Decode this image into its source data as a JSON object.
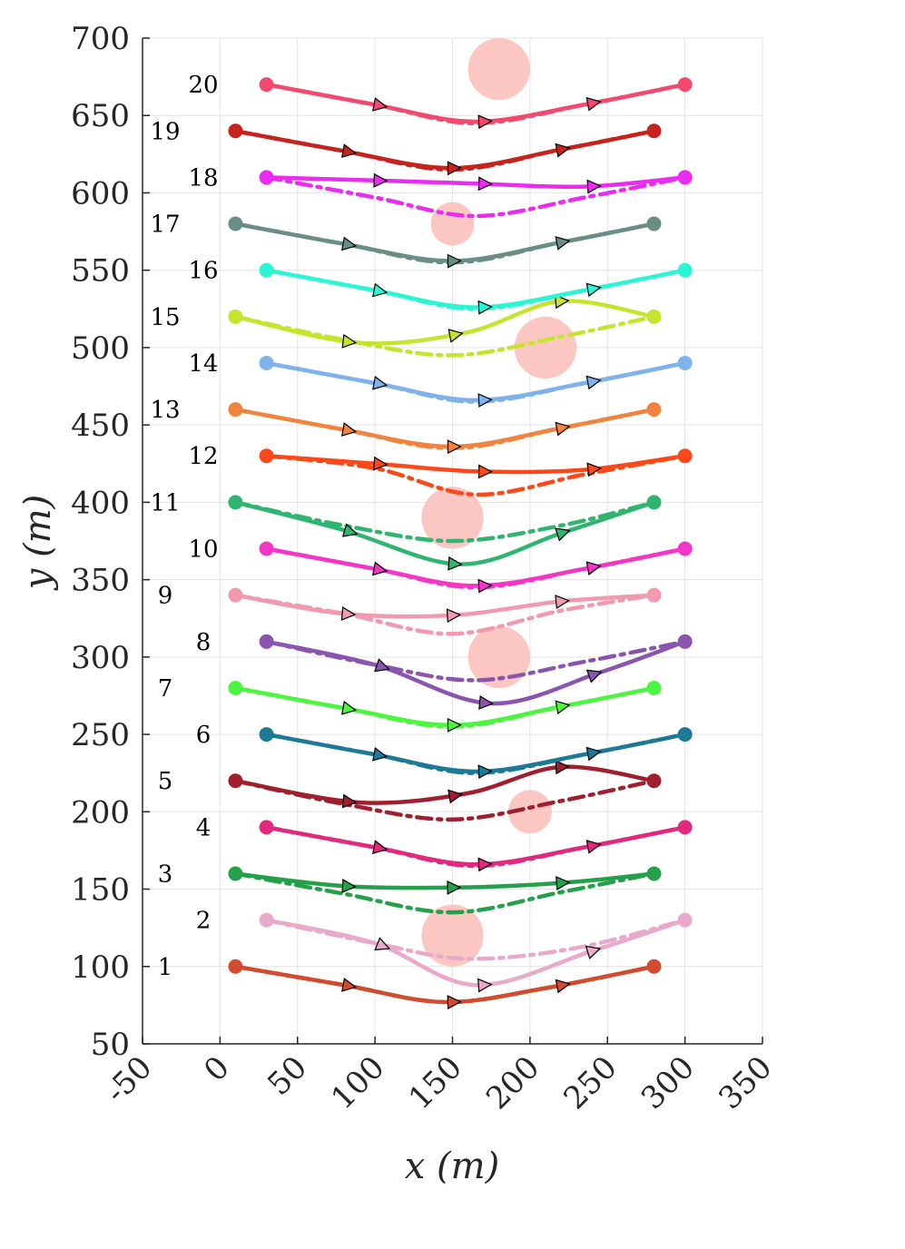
{
  "chart_data": {
    "type": "line",
    "title": "",
    "xlabel": "x (m)",
    "ylabel": "y (m)",
    "xlim": [
      -50,
      350
    ],
    "ylim": [
      50,
      700
    ],
    "xticks": [
      -50,
      0,
      50,
      100,
      150,
      200,
      250,
      300,
      350
    ],
    "yticks": [
      50,
      100,
      150,
      200,
      250,
      300,
      350,
      400,
      450,
      500,
      550,
      600,
      650,
      700
    ],
    "grid": true,
    "obstacles": [
      {
        "x": 180,
        "y": 680,
        "r": 20
      },
      {
        "x": 150,
        "y": 580,
        "r": 14
      },
      {
        "x": 210,
        "y": 500,
        "r": 20
      },
      {
        "x": 150,
        "y": 390,
        "r": 20
      },
      {
        "x": 180,
        "y": 300,
        "r": 20
      },
      {
        "x": 200,
        "y": 200,
        "r": 14
      },
      {
        "x": 150,
        "y": 120,
        "r": 20
      }
    ],
    "series": [
      {
        "name": "1",
        "label": "1",
        "color": "#d14b2e",
        "start": [
          10,
          100
        ],
        "end": [
          280,
          100
        ],
        "planned": [
          [
            10,
            100
          ],
          [
            80,
            88
          ],
          [
            145,
            77
          ],
          [
            210,
            86
          ],
          [
            280,
            100
          ]
        ],
        "actual": [
          [
            10,
            100
          ],
          [
            80,
            88
          ],
          [
            145,
            77
          ],
          [
            210,
            86
          ],
          [
            280,
            100
          ]
        ]
      },
      {
        "name": "2",
        "label": "2",
        "color": "#e8a9cb",
        "start": [
          30,
          130
        ],
        "end": [
          300,
          130
        ],
        "planned": [
          [
            30,
            130
          ],
          [
            100,
            115
          ],
          [
            160,
            105
          ],
          [
            230,
            112
          ],
          [
            300,
            130
          ]
        ],
        "actual": [
          [
            30,
            130
          ],
          [
            100,
            115
          ],
          [
            165,
            88
          ],
          [
            240,
            110
          ],
          [
            300,
            130
          ]
        ]
      },
      {
        "name": "3",
        "label": "3",
        "color": "#25a04a",
        "start": [
          10,
          160
        ],
        "end": [
          280,
          160
        ],
        "planned": [
          [
            10,
            160
          ],
          [
            80,
            147
          ],
          [
            150,
            135
          ],
          [
            220,
            148
          ],
          [
            280,
            160
          ]
        ],
        "actual": [
          [
            10,
            160
          ],
          [
            80,
            152
          ],
          [
            150,
            151
          ],
          [
            220,
            154
          ],
          [
            280,
            160
          ]
        ]
      },
      {
        "name": "4",
        "label": "4",
        "color": "#e0297f",
        "start": [
          30,
          190
        ],
        "end": [
          300,
          190
        ],
        "planned": [
          [
            30,
            190
          ],
          [
            100,
            177
          ],
          [
            165,
            165
          ],
          [
            235,
            177
          ],
          [
            300,
            190
          ]
        ],
        "actual": [
          [
            30,
            190
          ],
          [
            100,
            177
          ],
          [
            165,
            166
          ],
          [
            235,
            177
          ],
          [
            300,
            190
          ]
        ]
      },
      {
        "name": "5",
        "label": "5",
        "color": "#a01f2e",
        "start": [
          10,
          220
        ],
        "end": [
          280,
          220
        ],
        "planned": [
          [
            10,
            220
          ],
          [
            80,
            205
          ],
          [
            150,
            195
          ],
          [
            220,
            207
          ],
          [
            280,
            220
          ]
        ],
        "actual": [
          [
            10,
            220
          ],
          [
            90,
            206
          ],
          [
            160,
            212
          ],
          [
            220,
            229
          ],
          [
            280,
            220
          ]
        ]
      },
      {
        "name": "6",
        "label": "6",
        "color": "#1d7a96",
        "start": [
          30,
          250
        ],
        "end": [
          300,
          250
        ],
        "planned": [
          [
            30,
            250
          ],
          [
            100,
            237
          ],
          [
            165,
            225
          ],
          [
            235,
            237
          ],
          [
            300,
            250
          ]
        ],
        "actual": [
          [
            30,
            250
          ],
          [
            100,
            237
          ],
          [
            165,
            226
          ],
          [
            235,
            237
          ],
          [
            300,
            250
          ]
        ]
      },
      {
        "name": "7",
        "label": "7",
        "color": "#4cf53f",
        "start": [
          10,
          280
        ],
        "end": [
          280,
          280
        ],
        "planned": [
          [
            10,
            280
          ],
          [
            80,
            267
          ],
          [
            150,
            255
          ],
          [
            220,
            268
          ],
          [
            280,
            280
          ]
        ],
        "actual": [
          [
            10,
            280
          ],
          [
            80,
            267
          ],
          [
            150,
            256
          ],
          [
            220,
            268
          ],
          [
            280,
            280
          ]
        ]
      },
      {
        "name": "8",
        "label": "8",
        "color": "#8a55ae",
        "start": [
          30,
          310
        ],
        "end": [
          300,
          310
        ],
        "planned": [
          [
            30,
            310
          ],
          [
            100,
            295
          ],
          [
            165,
            285
          ],
          [
            235,
            297
          ],
          [
            300,
            310
          ]
        ],
        "actual": [
          [
            30,
            310
          ],
          [
            100,
            295
          ],
          [
            175,
            270
          ],
          [
            245,
            290
          ],
          [
            300,
            310
          ]
        ]
      },
      {
        "name": "9",
        "label": "9",
        "color": "#f19aaf",
        "start": [
          10,
          340
        ],
        "end": [
          280,
          340
        ],
        "planned": [
          [
            10,
            340
          ],
          [
            80,
            328
          ],
          [
            150,
            315
          ],
          [
            220,
            330
          ],
          [
            280,
            340
          ]
        ],
        "actual": [
          [
            10,
            340
          ],
          [
            80,
            328
          ],
          [
            150,
            327
          ],
          [
            220,
            336
          ],
          [
            280,
            340
          ]
        ]
      },
      {
        "name": "10",
        "label": "10",
        "color": "#f236c5",
        "start": [
          30,
          370
        ],
        "end": [
          300,
          370
        ],
        "planned": [
          [
            30,
            370
          ],
          [
            100,
            357
          ],
          [
            165,
            345
          ],
          [
            235,
            357
          ],
          [
            300,
            370
          ]
        ],
        "actual": [
          [
            30,
            370
          ],
          [
            100,
            357
          ],
          [
            165,
            346
          ],
          [
            235,
            357
          ],
          [
            300,
            370
          ]
        ]
      },
      {
        "name": "11",
        "label": "11",
        "color": "#2fb56f",
        "start": [
          10,
          400
        ],
        "end": [
          280,
          400
        ],
        "planned": [
          [
            10,
            400
          ],
          [
            80,
            385
          ],
          [
            150,
            375
          ],
          [
            220,
            385
          ],
          [
            280,
            400
          ]
        ],
        "actual": [
          [
            10,
            400
          ],
          [
            80,
            382
          ],
          [
            155,
            360
          ],
          [
            220,
            380
          ],
          [
            280,
            400
          ]
        ]
      },
      {
        "name": "12",
        "label": "12",
        "color": "#fb4818",
        "start": [
          30,
          430
        ],
        "end": [
          300,
          430
        ],
        "planned": [
          [
            30,
            430
          ],
          [
            100,
            422
          ],
          [
            165,
            405
          ],
          [
            235,
            418
          ],
          [
            300,
            430
          ]
        ],
        "actual": [
          [
            30,
            430
          ],
          [
            100,
            425
          ],
          [
            165,
            420
          ],
          [
            235,
            421
          ],
          [
            300,
            430
          ]
        ]
      },
      {
        "name": "13",
        "label": "13",
        "color": "#f0833d",
        "start": [
          10,
          460
        ],
        "end": [
          280,
          460
        ],
        "planned": [
          [
            10,
            460
          ],
          [
            80,
            447
          ],
          [
            150,
            435
          ],
          [
            220,
            448
          ],
          [
            280,
            460
          ]
        ],
        "actual": [
          [
            10,
            460
          ],
          [
            80,
            447
          ],
          [
            150,
            436
          ],
          [
            220,
            448
          ],
          [
            280,
            460
          ]
        ]
      },
      {
        "name": "14",
        "label": "14",
        "color": "#7fb2ea",
        "start": [
          30,
          490
        ],
        "end": [
          300,
          490
        ],
        "planned": [
          [
            30,
            490
          ],
          [
            100,
            477
          ],
          [
            165,
            465
          ],
          [
            235,
            477
          ],
          [
            300,
            490
          ]
        ],
        "actual": [
          [
            30,
            490
          ],
          [
            100,
            477
          ],
          [
            165,
            466
          ],
          [
            235,
            477
          ],
          [
            300,
            490
          ]
        ]
      },
      {
        "name": "15",
        "label": "15",
        "color": "#c6e42d",
        "start": [
          10,
          520
        ],
        "end": [
          280,
          520
        ],
        "planned": [
          [
            10,
            520
          ],
          [
            80,
            505
          ],
          [
            150,
            495
          ],
          [
            220,
            507
          ],
          [
            280,
            520
          ]
        ],
        "actual": [
          [
            10,
            520
          ],
          [
            90,
            503
          ],
          [
            160,
            510
          ],
          [
            220,
            530
          ],
          [
            280,
            520
          ]
        ]
      },
      {
        "name": "16",
        "label": "16",
        "color": "#2cf5d6",
        "start": [
          30,
          550
        ],
        "end": [
          300,
          550
        ],
        "planned": [
          [
            30,
            550
          ],
          [
            100,
            537
          ],
          [
            165,
            525
          ],
          [
            235,
            537
          ],
          [
            300,
            550
          ]
        ],
        "actual": [
          [
            30,
            550
          ],
          [
            100,
            537
          ],
          [
            165,
            526
          ],
          [
            235,
            537
          ],
          [
            300,
            550
          ]
        ]
      },
      {
        "name": "17",
        "label": "17",
        "color": "#6a8e86",
        "start": [
          10,
          580
        ],
        "end": [
          280,
          580
        ],
        "planned": [
          [
            10,
            580
          ],
          [
            80,
            567
          ],
          [
            150,
            555
          ],
          [
            220,
            568
          ],
          [
            280,
            580
          ]
        ],
        "actual": [
          [
            10,
            580
          ],
          [
            80,
            567
          ],
          [
            150,
            556
          ],
          [
            220,
            568
          ],
          [
            280,
            580
          ]
        ]
      },
      {
        "name": "18",
        "label": "18",
        "color": "#e92cf0",
        "start": [
          30,
          610
        ],
        "end": [
          300,
          610
        ],
        "planned": [
          [
            30,
            610
          ],
          [
            100,
            597
          ],
          [
            165,
            585
          ],
          [
            235,
            597
          ],
          [
            300,
            610
          ]
        ],
        "actual": [
          [
            30,
            610
          ],
          [
            100,
            608
          ],
          [
            165,
            606
          ],
          [
            235,
            604
          ],
          [
            300,
            610
          ]
        ]
      },
      {
        "name": "19",
        "label": "19",
        "color": "#c6231e",
        "start": [
          10,
          640
        ],
        "end": [
          280,
          640
        ],
        "planned": [
          [
            10,
            640
          ],
          [
            80,
            627
          ],
          [
            150,
            615
          ],
          [
            220,
            628
          ],
          [
            280,
            640
          ]
        ],
        "actual": [
          [
            10,
            640
          ],
          [
            80,
            627
          ],
          [
            150,
            616
          ],
          [
            220,
            628
          ],
          [
            280,
            640
          ]
        ]
      },
      {
        "name": "20",
        "label": "20",
        "color": "#f24a6e",
        "start": [
          30,
          670
        ],
        "end": [
          300,
          670
        ],
        "planned": [
          [
            30,
            670
          ],
          [
            100,
            657
          ],
          [
            165,
            645
          ],
          [
            235,
            657
          ],
          [
            300,
            670
          ]
        ],
        "actual": [
          [
            30,
            670
          ],
          [
            100,
            657
          ],
          [
            165,
            646
          ],
          [
            235,
            657
          ],
          [
            300,
            670
          ]
        ]
      }
    ]
  }
}
